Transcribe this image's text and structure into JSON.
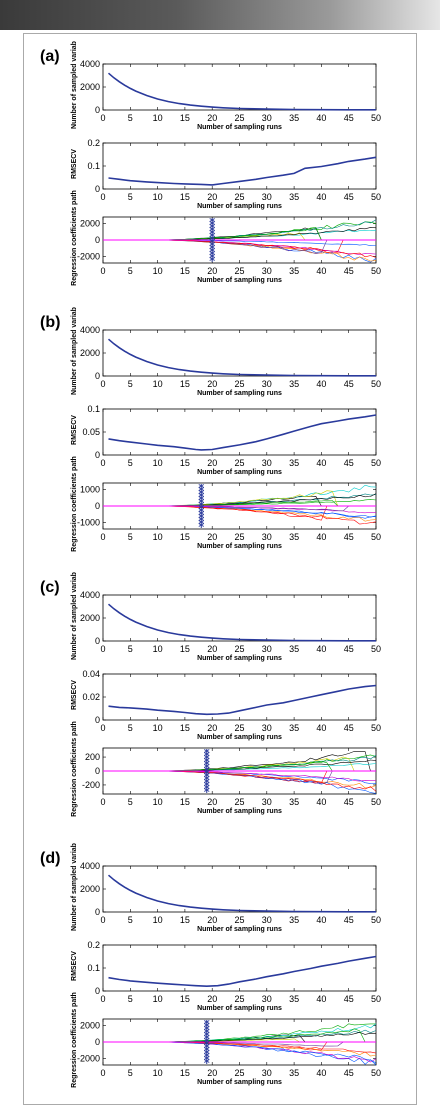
{
  "colors": {
    "trace": "#2a3a9c",
    "axis": "#000000",
    "zero_line": "#ff00ff",
    "frame_border": "#aaaaaa"
  },
  "chart_data": [
    {
      "panel": "(a)",
      "subplots": [
        {
          "type": "line",
          "ylabel": "Number of sampled variab",
          "xlabel": "Number of sampling runs",
          "xlim": [
            0,
            50
          ],
          "xticks": [
            0,
            5,
            10,
            15,
            20,
            25,
            30,
            35,
            40,
            45,
            50
          ],
          "ylim": [
            0,
            4000
          ],
          "yticks": [
            0,
            2000,
            4000
          ],
          "series": [
            {
              "x": [
                1,
                2,
                3,
                4,
                5,
                6,
                8,
                10,
                12,
                14,
                16,
                18,
                20,
                22,
                25,
                30,
                35,
                40,
                45,
                50
              ],
              "y": [
                3200,
                2800,
                2450,
                2150,
                1880,
                1640,
                1260,
                960,
                730,
                560,
                430,
                330,
                250,
                190,
                130,
                75,
                45,
                30,
                20,
                15
              ]
            }
          ]
        },
        {
          "type": "line",
          "ylabel": "RMSECV",
          "xlabel": "Number of sampling runs",
          "xlim": [
            0,
            50
          ],
          "xticks": [
            0,
            5,
            10,
            15,
            20,
            25,
            30,
            35,
            40,
            45,
            50
          ],
          "ylim": [
            0,
            0.2
          ],
          "yticks": [
            0,
            0.1,
            0.2
          ],
          "series": [
            {
              "x": [
                1,
                3,
                5,
                8,
                10,
                13,
                15,
                18,
                20,
                22,
                25,
                28,
                30,
                33,
                35,
                37,
                40,
                43,
                45,
                48,
                50
              ],
              "y": [
                0.048,
                0.042,
                0.036,
                0.031,
                0.028,
                0.024,
                0.022,
                0.02,
                0.018,
                0.024,
                0.033,
                0.042,
                0.05,
                0.06,
                0.068,
                0.09,
                0.098,
                0.11,
                0.12,
                0.13,
                0.138
              ]
            }
          ]
        },
        {
          "type": "coefficient-path",
          "ylabel": "Regression coefficients path",
          "xlabel": "Number of sampling runs",
          "xlim": [
            0,
            50
          ],
          "xticks": [
            0,
            5,
            10,
            15,
            20,
            25,
            30,
            35,
            40,
            45,
            50
          ],
          "ylim": [
            -2800,
            2800
          ],
          "yticks": [
            -2000,
            0,
            2000
          ],
          "marker_x": 20,
          "path_start": 10,
          "fan_amp": 2600
        }
      ]
    },
    {
      "panel": "(b)",
      "subplots": [
        {
          "type": "line",
          "ylabel": "Number of sampled variab",
          "xlabel": "Number of sampling runs",
          "xlim": [
            0,
            50
          ],
          "xticks": [
            0,
            5,
            10,
            15,
            20,
            25,
            30,
            35,
            40,
            45,
            50
          ],
          "ylim": [
            0,
            4000
          ],
          "yticks": [
            0,
            2000,
            4000
          ],
          "series": [
            {
              "x": [
                1,
                2,
                3,
                4,
                5,
                6,
                8,
                10,
                12,
                14,
                16,
                18,
                20,
                22,
                25,
                30,
                35,
                40,
                45,
                50
              ],
              "y": [
                3200,
                2800,
                2450,
                2150,
                1880,
                1640,
                1260,
                960,
                730,
                560,
                430,
                330,
                250,
                190,
                130,
                75,
                45,
                30,
                20,
                15
              ]
            }
          ]
        },
        {
          "type": "line",
          "ylabel": "RMSECV",
          "xlabel": "Number of sampling runs",
          "xlim": [
            0,
            50
          ],
          "xticks": [
            0,
            5,
            10,
            15,
            20,
            25,
            30,
            35,
            40,
            45,
            50
          ],
          "ylim": [
            0,
            0.1
          ],
          "yticks": [
            0,
            0.05,
            0.1
          ],
          "series": [
            {
              "x": [
                1,
                3,
                5,
                8,
                10,
                13,
                15,
                17,
                18,
                20,
                22,
                25,
                28,
                30,
                33,
                35,
                38,
                40,
                43,
                45,
                48,
                50
              ],
              "y": [
                0.035,
                0.031,
                0.028,
                0.024,
                0.021,
                0.018,
                0.015,
                0.012,
                0.011,
                0.012,
                0.016,
                0.022,
                0.029,
                0.035,
                0.045,
                0.052,
                0.062,
                0.068,
                0.074,
                0.078,
                0.083,
                0.087
              ]
            }
          ]
        },
        {
          "type": "coefficient-path",
          "ylabel": "Regression coefficients path",
          "xlabel": "Number of sampling runs",
          "xlim": [
            0,
            50
          ],
          "xticks": [
            0,
            5,
            10,
            15,
            20,
            25,
            30,
            35,
            40,
            45,
            50
          ],
          "ylim": [
            -1400,
            1400
          ],
          "yticks": [
            -1000,
            0,
            1000
          ],
          "marker_x": 18,
          "path_start": 10,
          "fan_amp": 1300
        }
      ]
    },
    {
      "panel": "(c)",
      "subplots": [
        {
          "type": "line",
          "ylabel": "Number of sampled variab",
          "xlabel": "Number of sampling runs",
          "xlim": [
            0,
            50
          ],
          "xticks": [
            0,
            5,
            10,
            15,
            20,
            25,
            30,
            35,
            40,
            45,
            50
          ],
          "ylim": [
            0,
            4000
          ],
          "yticks": [
            0,
            2000,
            4000
          ],
          "series": [
            {
              "x": [
                1,
                2,
                3,
                4,
                5,
                6,
                8,
                10,
                12,
                14,
                16,
                18,
                20,
                22,
                25,
                30,
                35,
                40,
                45,
                50
              ],
              "y": [
                3200,
                2800,
                2450,
                2150,
                1880,
                1640,
                1260,
                960,
                730,
                560,
                430,
                330,
                250,
                190,
                130,
                75,
                45,
                30,
                20,
                15
              ]
            }
          ]
        },
        {
          "type": "line",
          "ylabel": "RMSECV",
          "xlabel": "Number of sampling runs",
          "xlim": [
            0,
            50
          ],
          "xticks": [
            0,
            5,
            10,
            15,
            20,
            25,
            30,
            35,
            40,
            45,
            50
          ],
          "ylim": [
            0,
            0.04
          ],
          "yticks": [
            0,
            0.02,
            0.04
          ],
          "series": [
            {
              "x": [
                1,
                3,
                5,
                8,
                10,
                13,
                15,
                17,
                19,
                21,
                23,
                25,
                28,
                30,
                33,
                35,
                38,
                40,
                43,
                45,
                48,
                50
              ],
              "y": [
                0.012,
                0.011,
                0.0105,
                0.0095,
                0.0085,
                0.0075,
                0.0065,
                0.0055,
                0.005,
                0.0052,
                0.006,
                0.008,
                0.011,
                0.013,
                0.015,
                0.017,
                0.02,
                0.022,
                0.025,
                0.027,
                0.029,
                0.03
              ]
            }
          ]
        },
        {
          "type": "coefficient-path",
          "ylabel": "Regression coefficients path",
          "xlabel": "Number of sampling runs",
          "xlim": [
            0,
            50
          ],
          "xticks": [
            0,
            5,
            10,
            15,
            20,
            25,
            30,
            35,
            40,
            45,
            50
          ],
          "ylim": [
            -330,
            330
          ],
          "yticks": [
            -200,
            0,
            200
          ],
          "marker_x": 19,
          "path_start": 10,
          "fan_amp": 300
        }
      ]
    },
    {
      "panel": "(d)",
      "subplots": [
        {
          "type": "line",
          "ylabel": "Number of sampled variab",
          "xlabel": "Number of sampling runs",
          "xlim": [
            0,
            50
          ],
          "xticks": [
            0,
            5,
            10,
            15,
            20,
            25,
            30,
            35,
            40,
            45,
            50
          ],
          "ylim": [
            0,
            4000
          ],
          "yticks": [
            0,
            2000,
            4000
          ],
          "series": [
            {
              "x": [
                1,
                2,
                3,
                4,
                5,
                6,
                8,
                10,
                12,
                14,
                16,
                18,
                20,
                22,
                25,
                30,
                35,
                40,
                45,
                50
              ],
              "y": [
                3200,
                2800,
                2450,
                2150,
                1880,
                1640,
                1260,
                960,
                730,
                560,
                430,
                330,
                250,
                190,
                130,
                75,
                45,
                30,
                20,
                15
              ]
            }
          ]
        },
        {
          "type": "line",
          "ylabel": "RMSECV",
          "xlabel": "Number of sampling runs",
          "xlim": [
            0,
            50
          ],
          "xticks": [
            0,
            5,
            10,
            15,
            20,
            25,
            30,
            35,
            40,
            45,
            50
          ],
          "ylim": [
            0,
            0.2
          ],
          "yticks": [
            0,
            0.1,
            0.2
          ],
          "series": [
            {
              "x": [
                1,
                3,
                5,
                8,
                10,
                13,
                15,
                17,
                19,
                21,
                23,
                25,
                28,
                30,
                33,
                35,
                38,
                40,
                43,
                45,
                48,
                50
              ],
              "y": [
                0.058,
                0.05,
                0.044,
                0.038,
                0.034,
                0.029,
                0.026,
                0.023,
                0.021,
                0.023,
                0.03,
                0.04,
                0.052,
                0.062,
                0.075,
                0.085,
                0.098,
                0.108,
                0.12,
                0.13,
                0.142,
                0.15
              ]
            }
          ]
        },
        {
          "type": "coefficient-path",
          "ylabel": "Regression coefficients path",
          "xlabel": "Number of sampling runs",
          "xlim": [
            0,
            50
          ],
          "xticks": [
            0,
            5,
            10,
            15,
            20,
            25,
            30,
            35,
            40,
            45,
            50
          ],
          "ylim": [
            -2800,
            2800
          ],
          "yticks": [
            -2000,
            0,
            2000
          ],
          "marker_x": 19,
          "path_start": 10,
          "fan_amp": 2700
        }
      ]
    }
  ]
}
